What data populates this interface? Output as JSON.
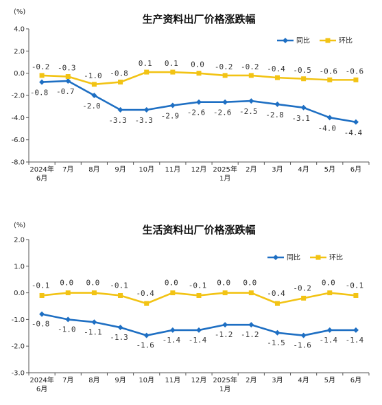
{
  "chart_data": [
    {
      "type": "line",
      "title": "生产资料出厂价格涨跌幅",
      "unit": "(%)",
      "categories": [
        "2024年6月",
        "7月",
        "8月",
        "9月",
        "10月",
        "11月",
        "12月",
        "2025年1月",
        "2月",
        "3月",
        "4月",
        "5月",
        "6月"
      ],
      "category_labels": [
        [
          "2024年",
          "6月"
        ],
        [
          "7月"
        ],
        [
          "8月"
        ],
        [
          "9月"
        ],
        [
          "10月"
        ],
        [
          "11月"
        ],
        [
          "12月"
        ],
        [
          "2025年",
          "1月"
        ],
        [
          "2月"
        ],
        [
          "3月"
        ],
        [
          "4月"
        ],
        [
          "5月"
        ],
        [
          "6月"
        ]
      ],
      "ylim": [
        -8.0,
        4.0
      ],
      "yticks": [
        "4.0",
        "2.0",
        "0.0",
        "-2.0",
        "-4.0",
        "-6.0",
        "-8.0"
      ],
      "series": [
        {
          "name": "同比",
          "color": "#1e6fc3",
          "values": [
            -0.8,
            -0.7,
            -2.0,
            -3.3,
            -3.3,
            -2.9,
            -2.6,
            -2.6,
            -2.5,
            -2.8,
            -3.1,
            -4.0,
            -4.4
          ],
          "labels": [
            "-0.8",
            "-0.7",
            "-2.0",
            "-3.3",
            "-3.3",
            "-2.9",
            "-2.6",
            "-2.6",
            "-2.5",
            "-2.8",
            "-3.1",
            "-4.0",
            "-4.4"
          ]
        },
        {
          "name": "环比",
          "color": "#f2c314",
          "values": [
            -0.2,
            -0.3,
            -1.0,
            -0.8,
            0.1,
            0.1,
            0.0,
            -0.2,
            -0.2,
            -0.4,
            -0.5,
            -0.6,
            -0.6
          ],
          "labels": [
            "-0.2",
            "-0.3",
            "-1.0",
            "-0.8",
            "0.1",
            "0.1",
            "0.0",
            "-0.2",
            "-0.2",
            "-0.4",
            "-0.5",
            "-0.6",
            "-0.6"
          ]
        }
      ],
      "legend": "top-right",
      "grid": false
    },
    {
      "type": "line",
      "title": "生活资料出厂价格涨跌幅",
      "unit": "(%)",
      "categories": [
        "2024年6月",
        "7月",
        "8月",
        "9月",
        "10月",
        "11月",
        "12月",
        "2025年1月",
        "2月",
        "3月",
        "4月",
        "5月",
        "6月"
      ],
      "category_labels": [
        [
          "2024年",
          "6月"
        ],
        [
          "7月"
        ],
        [
          "8月"
        ],
        [
          "9月"
        ],
        [
          "10月"
        ],
        [
          "11月"
        ],
        [
          "12月"
        ],
        [
          "2025年",
          "1月"
        ],
        [
          "2月"
        ],
        [
          "3月"
        ],
        [
          "4月"
        ],
        [
          "5月"
        ],
        [
          "6月"
        ]
      ],
      "ylim": [
        -3.0,
        2.0
      ],
      "yticks": [
        "2.0",
        "1.0",
        "0.0",
        "-1.0",
        "-2.0",
        "-3.0"
      ],
      "series": [
        {
          "name": "同比",
          "color": "#1e6fc3",
          "values": [
            -0.8,
            -1.0,
            -1.1,
            -1.3,
            -1.6,
            -1.4,
            -1.4,
            -1.2,
            -1.2,
            -1.5,
            -1.6,
            -1.4,
            -1.4
          ],
          "labels": [
            "-0.8",
            "-1.0",
            "-1.1",
            "-1.3",
            "-1.6",
            "-1.4",
            "-1.4",
            "-1.2",
            "-1.2",
            "-1.5",
            "-1.6",
            "-1.4",
            "-1.4"
          ]
        },
        {
          "name": "环比",
          "color": "#f2c314",
          "values": [
            -0.1,
            0.0,
            0.0,
            -0.1,
            -0.4,
            0.0,
            -0.1,
            0.0,
            0.0,
            -0.4,
            -0.2,
            0.0,
            -0.1
          ],
          "labels": [
            "-0.1",
            "0.0",
            "0.0",
            "-0.1",
            "-0.4",
            "0.0",
            "-0.1",
            "0.0",
            "0.0",
            "-0.4",
            "-0.2",
            "0.0",
            "-0.1"
          ]
        }
      ],
      "legend": "top-right",
      "grid": false
    }
  ]
}
